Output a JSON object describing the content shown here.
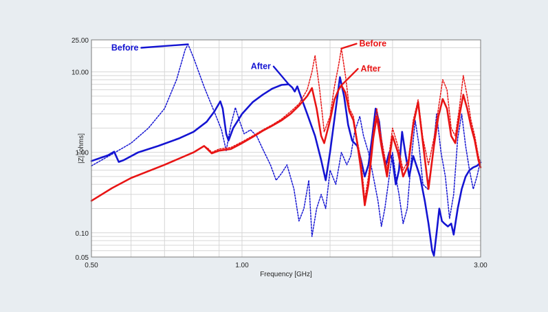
{
  "chart_data": {
    "type": "line",
    "title": "",
    "xlabel": "Frequency [GHz]",
    "ylabel": "|Z| [ohms]",
    "xscale": "log",
    "yscale": "log",
    "xlim": [
      0.5,
      3.0
    ],
    "ylim": [
      0.05,
      25.0
    ],
    "x_ticks": [
      "0.50",
      "1.00",
      "3.00"
    ],
    "y_ticks": [
      "25.00",
      "10.00",
      "1.00",
      "0.10",
      "0.05"
    ],
    "grid": true,
    "colors": {
      "blue": "#1414d2",
      "red": "#e81414"
    },
    "series": [
      {
        "name": "Before",
        "color": "#1414d2",
        "style": "dotted",
        "points": [
          [
            0.5,
            0.68
          ],
          [
            0.55,
            0.95
          ],
          [
            0.6,
            1.3
          ],
          [
            0.65,
            2.0
          ],
          [
            0.7,
            3.5
          ],
          [
            0.74,
            8.0
          ],
          [
            0.77,
            19.0
          ],
          [
            0.78,
            22.0
          ],
          [
            0.8,
            15.0
          ],
          [
            0.84,
            6.5
          ],
          [
            0.88,
            3.2
          ],
          [
            0.91,
            1.9
          ],
          [
            0.93,
            1.05
          ],
          [
            0.95,
            2.2
          ],
          [
            0.97,
            3.6
          ],
          [
            0.99,
            2.4
          ],
          [
            1.01,
            1.7
          ],
          [
            1.04,
            1.9
          ],
          [
            1.07,
            1.6
          ],
          [
            1.1,
            1.1
          ],
          [
            1.14,
            0.7
          ],
          [
            1.17,
            0.45
          ],
          [
            1.2,
            0.55
          ],
          [
            1.23,
            0.7
          ],
          [
            1.27,
            0.35
          ],
          [
            1.3,
            0.14
          ],
          [
            1.33,
            0.2
          ],
          [
            1.36,
            0.45
          ],
          [
            1.38,
            0.09
          ],
          [
            1.41,
            0.2
          ],
          [
            1.44,
            0.3
          ],
          [
            1.47,
            0.2
          ],
          [
            1.5,
            0.6
          ],
          [
            1.54,
            0.4
          ],
          [
            1.58,
            1.0
          ],
          [
            1.62,
            0.7
          ],
          [
            1.65,
            0.9
          ],
          [
            1.68,
            1.8
          ],
          [
            1.72,
            2.8
          ],
          [
            1.75,
            1.6
          ],
          [
            1.79,
            1.0
          ],
          [
            1.83,
            0.5
          ],
          [
            1.87,
            0.25
          ],
          [
            1.9,
            0.12
          ],
          [
            1.93,
            0.2
          ],
          [
            1.97,
            0.5
          ],
          [
            2.0,
            1.0
          ],
          [
            2.03,
            0.5
          ],
          [
            2.06,
            0.3
          ],
          [
            2.1,
            0.13
          ],
          [
            2.14,
            0.2
          ],
          [
            2.18,
            0.8
          ],
          [
            2.22,
            2.5
          ],
          [
            2.26,
            1.2
          ],
          [
            2.3,
            0.4
          ],
          [
            2.35,
            0.35
          ],
          [
            2.4,
            0.8
          ],
          [
            2.45,
            3.0
          ],
          [
            2.5,
            1.0
          ],
          [
            2.55,
            0.5
          ],
          [
            2.6,
            0.15
          ],
          [
            2.65,
            0.3
          ],
          [
            2.7,
            1.5
          ],
          [
            2.75,
            3.0
          ],
          [
            2.8,
            1.2
          ],
          [
            2.85,
            0.6
          ],
          [
            2.9,
            0.35
          ],
          [
            2.95,
            0.5
          ],
          [
            3.0,
            0.8
          ]
        ]
      },
      {
        "name": "After",
        "color": "#1414d2",
        "style": "solid",
        "points": [
          [
            0.5,
            0.78
          ],
          [
            0.54,
            0.92
          ],
          [
            0.555,
            1.02
          ],
          [
            0.567,
            0.76
          ],
          [
            0.58,
            0.8
          ],
          [
            0.62,
            1.0
          ],
          [
            0.68,
            1.2
          ],
          [
            0.75,
            1.5
          ],
          [
            0.8,
            1.8
          ],
          [
            0.85,
            2.4
          ],
          [
            0.88,
            3.2
          ],
          [
            0.905,
            4.3
          ],
          [
            0.915,
            3.5
          ],
          [
            0.93,
            1.7
          ],
          [
            0.94,
            1.4
          ],
          [
            0.96,
            2.0
          ],
          [
            1.0,
            3.0
          ],
          [
            1.05,
            4.2
          ],
          [
            1.1,
            5.2
          ],
          [
            1.15,
            6.2
          ],
          [
            1.2,
            6.9
          ],
          [
            1.24,
            7.0
          ],
          [
            1.26,
            6.4
          ],
          [
            1.275,
            5.7
          ],
          [
            1.29,
            6.6
          ],
          [
            1.31,
            5.0
          ],
          [
            1.35,
            3.0
          ],
          [
            1.4,
            1.6
          ],
          [
            1.44,
            0.8
          ],
          [
            1.47,
            0.45
          ],
          [
            1.5,
            1.0
          ],
          [
            1.54,
            3.5
          ],
          [
            1.57,
            8.6
          ],
          [
            1.6,
            5.0
          ],
          [
            1.63,
            2.2
          ],
          [
            1.66,
            1.4
          ],
          [
            1.7,
            1.2
          ],
          [
            1.73,
            0.8
          ],
          [
            1.76,
            0.5
          ],
          [
            1.79,
            0.7
          ],
          [
            1.82,
            1.5
          ],
          [
            1.85,
            3.5
          ],
          [
            1.88,
            2.4
          ],
          [
            1.91,
            1.0
          ],
          [
            1.94,
            0.7
          ],
          [
            1.97,
            1.0
          ],
          [
            2.0,
            0.8
          ],
          [
            2.03,
            0.4
          ],
          [
            2.06,
            0.6
          ],
          [
            2.09,
            1.8
          ],
          [
            2.12,
            1.0
          ],
          [
            2.16,
            0.5
          ],
          [
            2.2,
            0.9
          ],
          [
            2.23,
            0.7
          ],
          [
            2.27,
            0.5
          ],
          [
            2.32,
            0.25
          ],
          [
            2.36,
            0.13
          ],
          [
            2.4,
            0.06
          ],
          [
            2.42,
            0.052
          ],
          [
            2.45,
            0.1
          ],
          [
            2.48,
            0.2
          ],
          [
            2.51,
            0.14
          ],
          [
            2.54,
            0.13
          ],
          [
            2.58,
            0.12
          ],
          [
            2.62,
            0.13
          ],
          [
            2.65,
            0.095
          ],
          [
            2.7,
            0.2
          ],
          [
            2.75,
            0.35
          ],
          [
            2.8,
            0.5
          ],
          [
            2.85,
            0.6
          ],
          [
            2.9,
            0.65
          ],
          [
            2.95,
            0.68
          ],
          [
            3.0,
            0.75
          ]
        ]
      },
      {
        "name": "Before",
        "color": "#e81414",
        "style": "dotted",
        "points": [
          [
            0.5,
            0.25
          ],
          [
            0.55,
            0.36
          ],
          [
            0.6,
            0.48
          ],
          [
            0.7,
            0.7
          ],
          [
            0.8,
            1.0
          ],
          [
            0.84,
            1.2
          ],
          [
            0.855,
            1.12
          ],
          [
            0.87,
            1.0
          ],
          [
            0.9,
            1.1
          ],
          [
            0.95,
            1.15
          ],
          [
            1.0,
            1.35
          ],
          [
            1.05,
            1.6
          ],
          [
            1.1,
            1.9
          ],
          [
            1.15,
            2.2
          ],
          [
            1.2,
            2.6
          ],
          [
            1.25,
            3.2
          ],
          [
            1.3,
            4.0
          ],
          [
            1.35,
            6.0
          ],
          [
            1.38,
            10.0
          ],
          [
            1.4,
            16.0
          ],
          [
            1.43,
            6.0
          ],
          [
            1.46,
            1.8
          ],
          [
            1.5,
            2.8
          ],
          [
            1.53,
            6.5
          ],
          [
            1.56,
            12.0
          ],
          [
            1.58,
            19.5
          ],
          [
            1.61,
            9.0
          ],
          [
            1.64,
            3.5
          ],
          [
            1.67,
            2.8
          ],
          [
            1.7,
            1.4
          ],
          [
            1.73,
            0.8
          ],
          [
            1.76,
            0.26
          ],
          [
            1.79,
            0.5
          ],
          [
            1.83,
            1.8
          ],
          [
            1.86,
            3.5
          ],
          [
            1.9,
            1.5
          ],
          [
            1.95,
            0.6
          ],
          [
            2.0,
            2.0
          ],
          [
            2.05,
            1.2
          ],
          [
            2.1,
            0.6
          ],
          [
            2.15,
            0.8
          ],
          [
            2.2,
            2.5
          ],
          [
            2.25,
            4.5
          ],
          [
            2.3,
            1.5
          ],
          [
            2.36,
            0.7
          ],
          [
            2.42,
            1.5
          ],
          [
            2.47,
            3.5
          ],
          [
            2.52,
            8.0
          ],
          [
            2.57,
            6.0
          ],
          [
            2.62,
            2.0
          ],
          [
            2.67,
            1.6
          ],
          [
            2.72,
            3.5
          ],
          [
            2.77,
            9.0
          ],
          [
            2.82,
            5.0
          ],
          [
            2.87,
            2.5
          ],
          [
            2.92,
            1.6
          ],
          [
            2.97,
            0.9
          ],
          [
            3.0,
            0.7
          ]
        ]
      },
      {
        "name": "After",
        "color": "#e81414",
        "style": "solid",
        "points": [
          [
            0.5,
            0.25
          ],
          [
            0.55,
            0.36
          ],
          [
            0.6,
            0.48
          ],
          [
            0.7,
            0.7
          ],
          [
            0.8,
            1.0
          ],
          [
            0.84,
            1.2
          ],
          [
            0.855,
            1.08
          ],
          [
            0.87,
            0.97
          ],
          [
            0.9,
            1.05
          ],
          [
            0.95,
            1.1
          ],
          [
            1.0,
            1.3
          ],
          [
            1.05,
            1.55
          ],
          [
            1.1,
            1.85
          ],
          [
            1.15,
            2.15
          ],
          [
            1.2,
            2.5
          ],
          [
            1.25,
            3.0
          ],
          [
            1.3,
            3.8
          ],
          [
            1.35,
            5.0
          ],
          [
            1.38,
            6.3
          ],
          [
            1.41,
            3.5
          ],
          [
            1.44,
            1.6
          ],
          [
            1.46,
            1.3
          ],
          [
            1.5,
            2.5
          ],
          [
            1.53,
            4.5
          ],
          [
            1.56,
            6.0
          ],
          [
            1.58,
            6.8
          ],
          [
            1.61,
            5.5
          ],
          [
            1.64,
            3.2
          ],
          [
            1.67,
            2.5
          ],
          [
            1.7,
            1.3
          ],
          [
            1.73,
            0.6
          ],
          [
            1.76,
            0.22
          ],
          [
            1.79,
            0.4
          ],
          [
            1.83,
            1.5
          ],
          [
            1.86,
            2.8
          ],
          [
            1.9,
            1.2
          ],
          [
            1.95,
            0.5
          ],
          [
            2.0,
            1.6
          ],
          [
            2.05,
            1.0
          ],
          [
            2.1,
            0.5
          ],
          [
            2.15,
            0.7
          ],
          [
            2.2,
            2.2
          ],
          [
            2.25,
            4.2
          ],
          [
            2.3,
            1.3
          ],
          [
            2.36,
            0.35
          ],
          [
            2.42,
            1.2
          ],
          [
            2.47,
            2.8
          ],
          [
            2.52,
            4.6
          ],
          [
            2.57,
            3.5
          ],
          [
            2.62,
            1.6
          ],
          [
            2.67,
            1.3
          ],
          [
            2.72,
            2.8
          ],
          [
            2.77,
            5.2
          ],
          [
            2.82,
            3.5
          ],
          [
            2.87,
            2.1
          ],
          [
            2.92,
            1.4
          ],
          [
            2.97,
            0.8
          ],
          [
            3.0,
            0.65
          ]
        ]
      }
    ],
    "annotations": [
      {
        "text": "Before",
        "color": "#1414d2",
        "points_to": [
          0.78,
          22.0
        ]
      },
      {
        "text": "After",
        "color": "#1414d2",
        "points_to": [
          1.24,
          7.0
        ]
      },
      {
        "text": "Before",
        "color": "#e81414",
        "points_to": [
          1.58,
          19.5
        ]
      },
      {
        "text": "After",
        "color": "#e81414",
        "points_to": [
          1.58,
          6.8
        ]
      }
    ]
  }
}
